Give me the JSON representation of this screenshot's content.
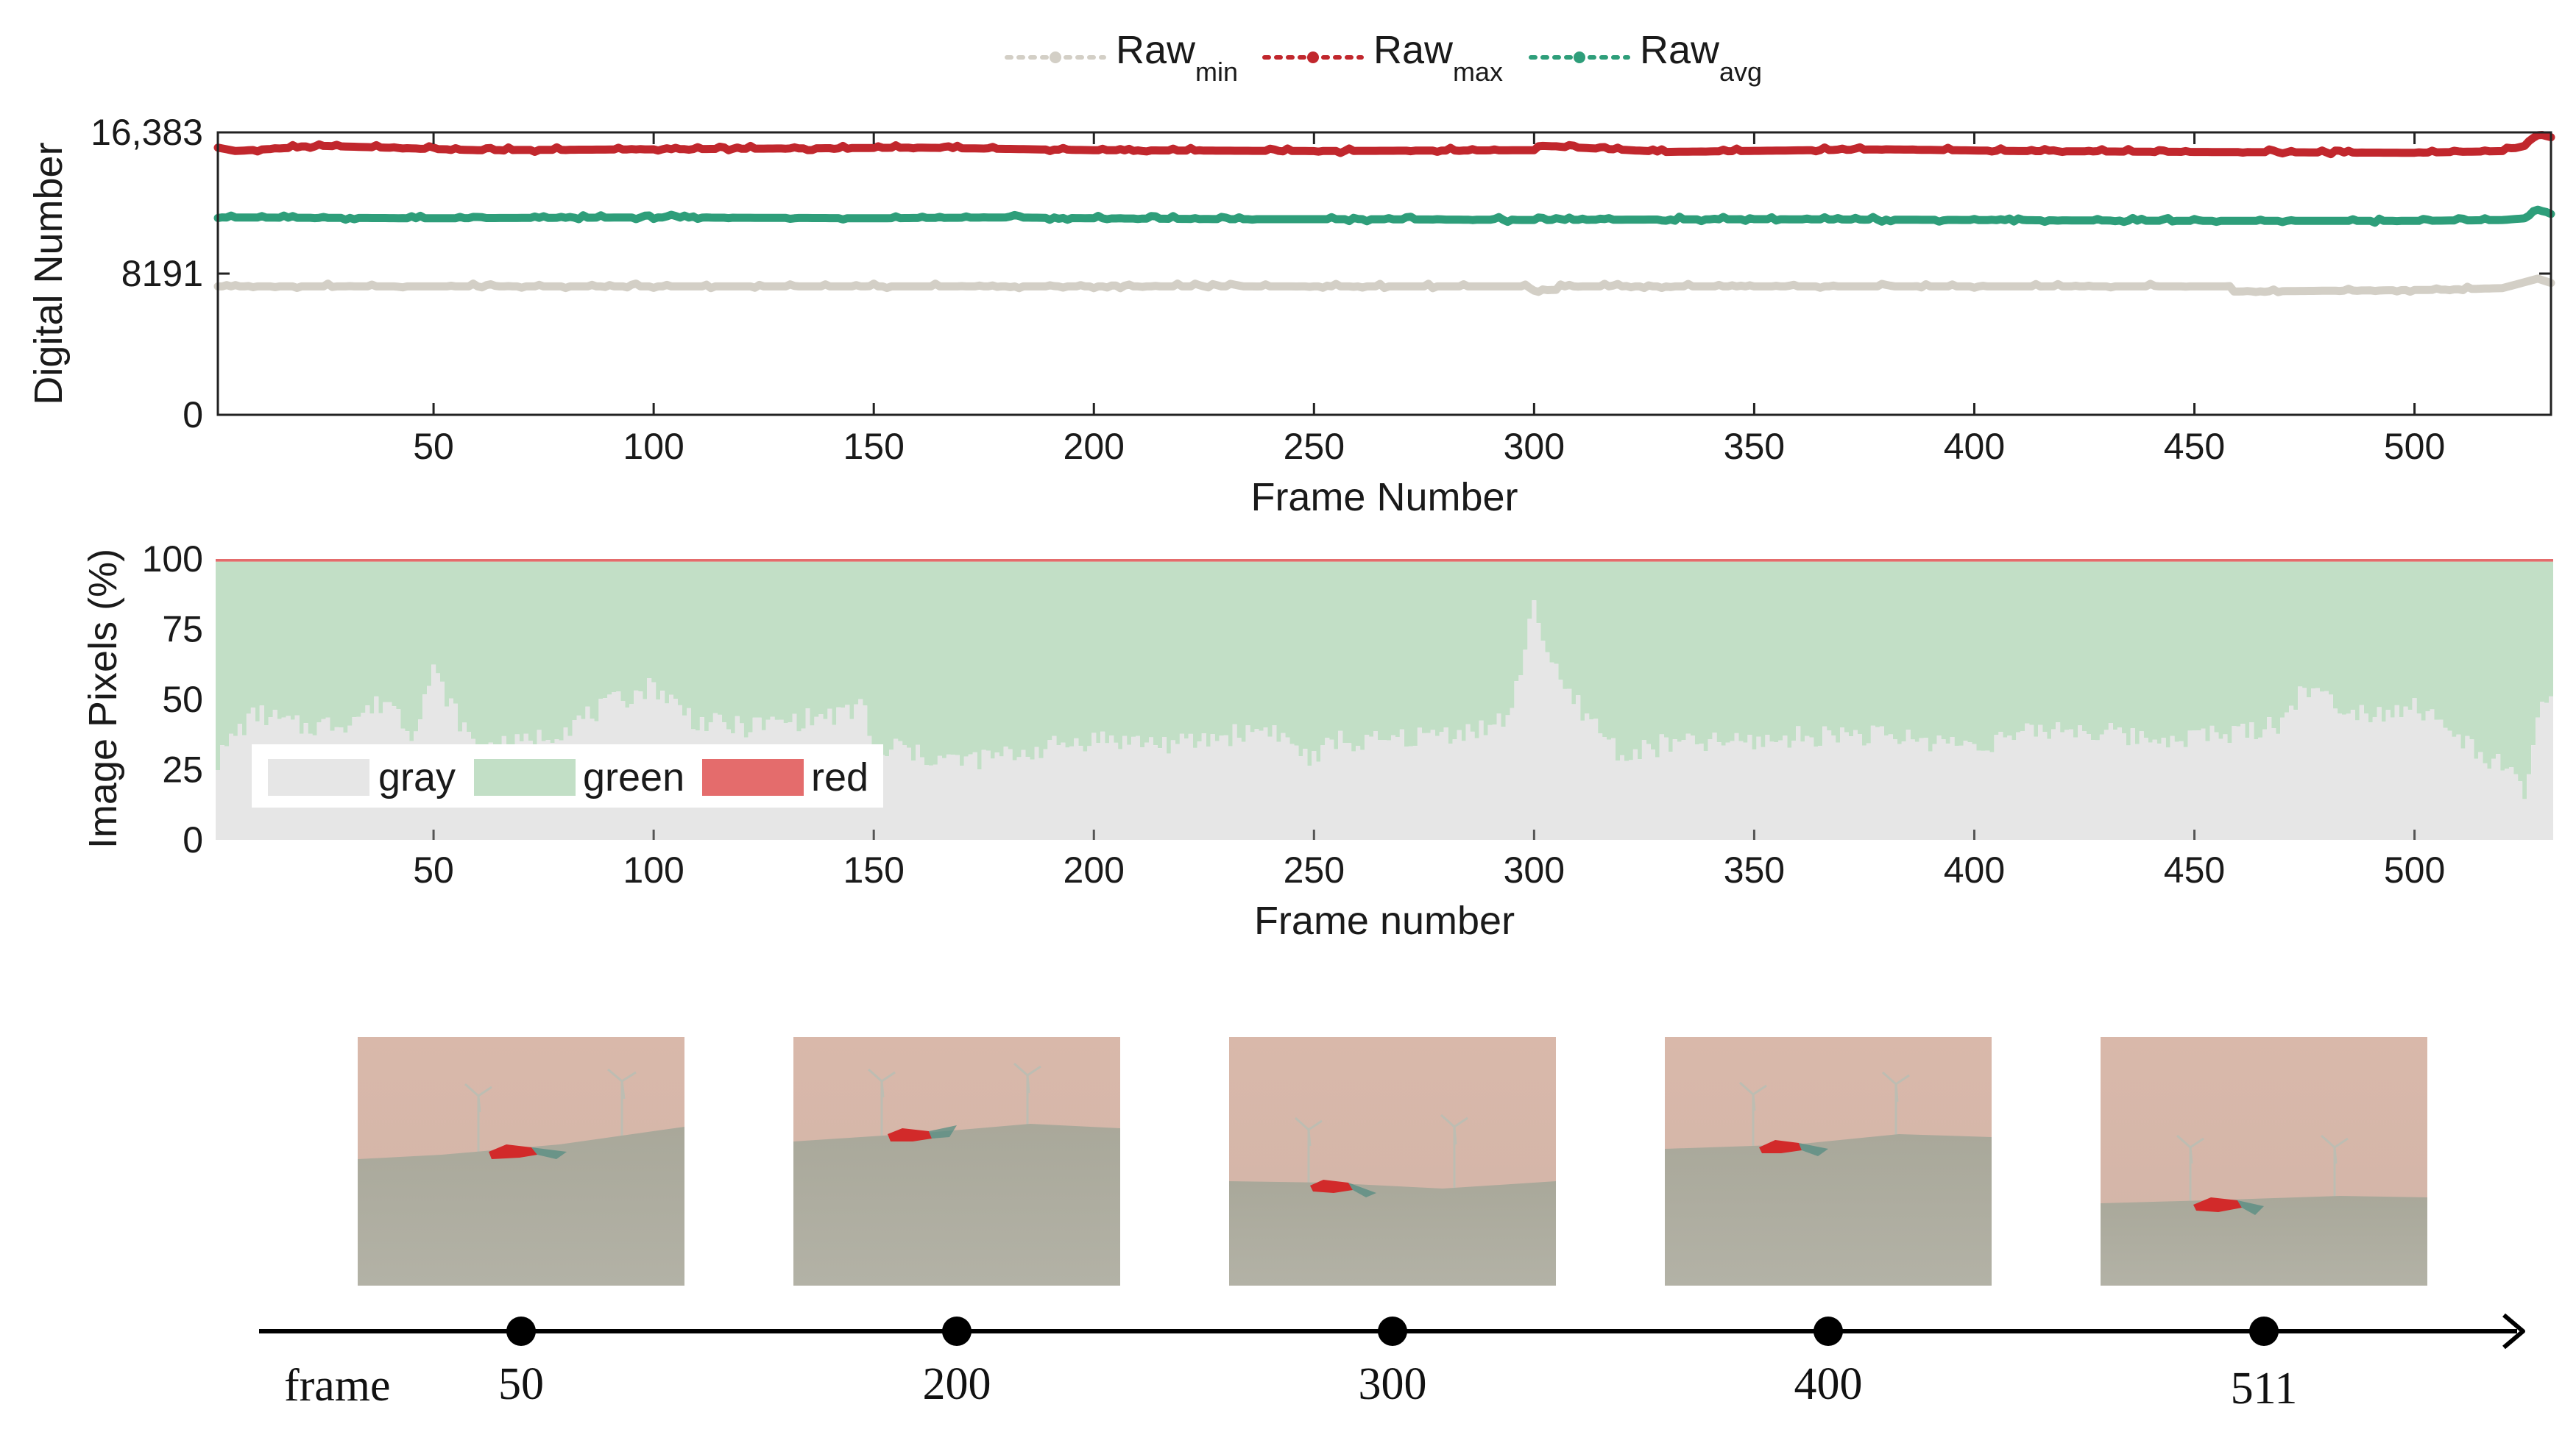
{
  "chart_data": [
    {
      "type": "line",
      "legend": [
        {
          "base": "Raw",
          "sub": "min",
          "color": "#d3cfc6"
        },
        {
          "base": "Raw",
          "sub": "max",
          "color": "#c1272d"
        },
        {
          "base": "Raw",
          "sub": "avg",
          "color": "#2e9e7a"
        }
      ],
      "xlabel": "Frame Number",
      "ylabel": "Digital Number",
      "xlim": [
        1,
        531
      ],
      "ylim": [
        0,
        16383
      ],
      "xticks": [
        50,
        100,
        150,
        200,
        250,
        300,
        350,
        400,
        450,
        500
      ],
      "yticks": [
        {
          "value": 0,
          "label": "0"
        },
        {
          "value": 8191,
          "label": "8191"
        },
        {
          "value": 16383,
          "label": "16,383"
        }
      ],
      "series": [
        {
          "name": "Raw_max",
          "color": "#c1272d",
          "x": [
            1,
            5,
            25,
            60,
            100,
            160,
            200,
            250,
            300,
            302,
            330,
            380,
            410,
            450,
            500,
            520,
            525,
            528,
            531
          ],
          "values": [
            15500,
            15300,
            15600,
            15350,
            15400,
            15500,
            15350,
            15300,
            15350,
            15600,
            15250,
            15400,
            15300,
            15250,
            15200,
            15300,
            15600,
            16300,
            16100
          ]
        },
        {
          "name": "Raw_avg",
          "color": "#2e9e7a",
          "x": [
            1,
            50,
            100,
            150,
            180,
            200,
            230,
            260,
            300,
            350,
            400,
            450,
            500,
            520,
            525,
            528,
            531
          ],
          "values": [
            11450,
            11400,
            11450,
            11400,
            11450,
            11400,
            11350,
            11350,
            11300,
            11350,
            11300,
            11250,
            11250,
            11300,
            11400,
            11900,
            11650
          ]
        },
        {
          "name": "Raw_min",
          "color": "#d3cfc6",
          "x": [
            1,
            100,
            200,
            299,
            300,
            305,
            306,
            400,
            458,
            459,
            505,
            520,
            528,
            531
          ],
          "values": [
            7450,
            7450,
            7450,
            7450,
            7200,
            7250,
            7450,
            7450,
            7450,
            7150,
            7250,
            7350,
            7900,
            7650
          ]
        }
      ]
    },
    {
      "type": "area",
      "stacked": true,
      "xlabel": "Frame number",
      "ylabel": "Image Pixels (%)",
      "xlim": [
        1,
        531
      ],
      "ylim": [
        0,
        100
      ],
      "xticks": [
        50,
        100,
        150,
        200,
        250,
        300,
        350,
        400,
        450,
        500
      ],
      "yticks": [
        0,
        25,
        50,
        75,
        100
      ],
      "legend": [
        {
          "name": "gray",
          "color": "#e6e6e6"
        },
        {
          "name": "green",
          "color": "#c2dfc6"
        },
        {
          "name": "red",
          "color": "#e46c6c"
        }
      ],
      "x": [
        1,
        5,
        10,
        20,
        30,
        40,
        45,
        50,
        55,
        60,
        70,
        80,
        90,
        100,
        110,
        120,
        130,
        140,
        145,
        148,
        150,
        155,
        160,
        170,
        180,
        200,
        220,
        240,
        250,
        255,
        260,
        270,
        280,
        290,
        295,
        300,
        303,
        306,
        310,
        320,
        330,
        350,
        370,
        400,
        420,
        440,
        460,
        470,
        475,
        480,
        490,
        500,
        510,
        520,
        525,
        528,
        531
      ],
      "gray": [
        28,
        38,
        45,
        40,
        42,
        50,
        38,
        60,
        45,
        32,
        34,
        40,
        48,
        55,
        42,
        40,
        42,
        44,
        45,
        50,
        25,
        34,
        30,
        28,
        30,
        36,
        34,
        40,
        28,
        36,
        34,
        36,
        38,
        40,
        45,
        86,
        66,
        55,
        48,
        30,
        34,
        35,
        38,
        34,
        40,
        36,
        38,
        42,
        55,
        50,
        45,
        48,
        36,
        26,
        16,
        45,
        50
      ],
      "red": [
        1,
        1,
        1,
        1,
        1,
        1,
        1,
        1,
        1,
        1,
        1,
        1,
        1,
        1,
        1,
        1,
        1,
        1,
        1,
        1,
        1,
        1,
        1,
        1,
        1,
        1,
        1,
        1,
        1,
        1,
        1,
        1,
        1,
        1,
        1,
        1,
        1,
        1,
        1,
        1,
        1,
        1,
        1,
        1,
        1,
        1,
        1,
        1,
        1,
        1,
        1,
        1,
        1,
        1,
        1,
        1,
        1
      ]
    }
  ],
  "timeline": {
    "axis_label": "frame",
    "markers": [
      "50",
      "200",
      "300",
      "400",
      "511"
    ]
  }
}
